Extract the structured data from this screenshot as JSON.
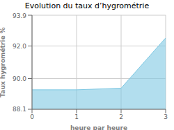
{
  "chart_data": {
    "type": "area",
    "title": "Evolution du taux d’hygrométrie",
    "xlabel": "heure par heure",
    "ylabel": "Taux hygrométrie %",
    "x": [
      0,
      1,
      2,
      3
    ],
    "values": [
      89.3,
      89.3,
      89.4,
      92.5
    ],
    "xlim": [
      0,
      3
    ],
    "ylim": [
      88.1,
      93.9
    ],
    "xticks": [
      0,
      1,
      2,
      3
    ],
    "yticks": [
      88.1,
      {
        "value": 90,
        "label": "90.0"
      },
      {
        "value": 92,
        "label": "92.0"
      },
      93.9
    ],
    "color": "#7ec8e3",
    "grid": true
  }
}
